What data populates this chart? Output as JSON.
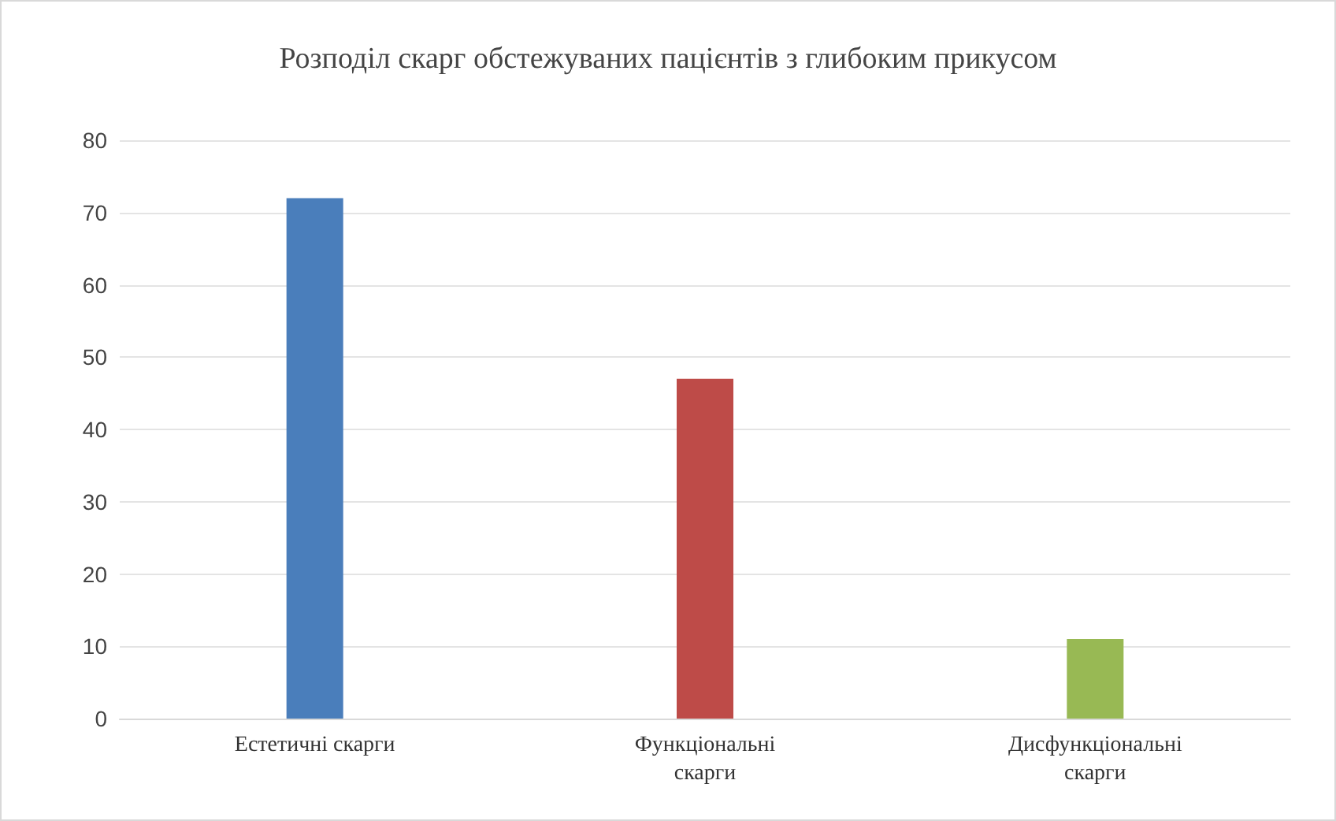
{
  "chart_data": {
    "type": "bar",
    "title": "Розподіл скарг обстежуваних пацієнтів з глибоким прикусом",
    "categories": [
      "Естетичні скарги",
      "Функціональні скарги",
      "Дисфункціональні скарги"
    ],
    "values": [
      72,
      47,
      11
    ],
    "colors": [
      "#4a7ebb",
      "#be4b48",
      "#98b954"
    ],
    "ylim": [
      0,
      80
    ],
    "yticks": [
      0,
      10,
      20,
      30,
      40,
      50,
      60,
      70,
      80
    ],
    "grid": "y"
  }
}
